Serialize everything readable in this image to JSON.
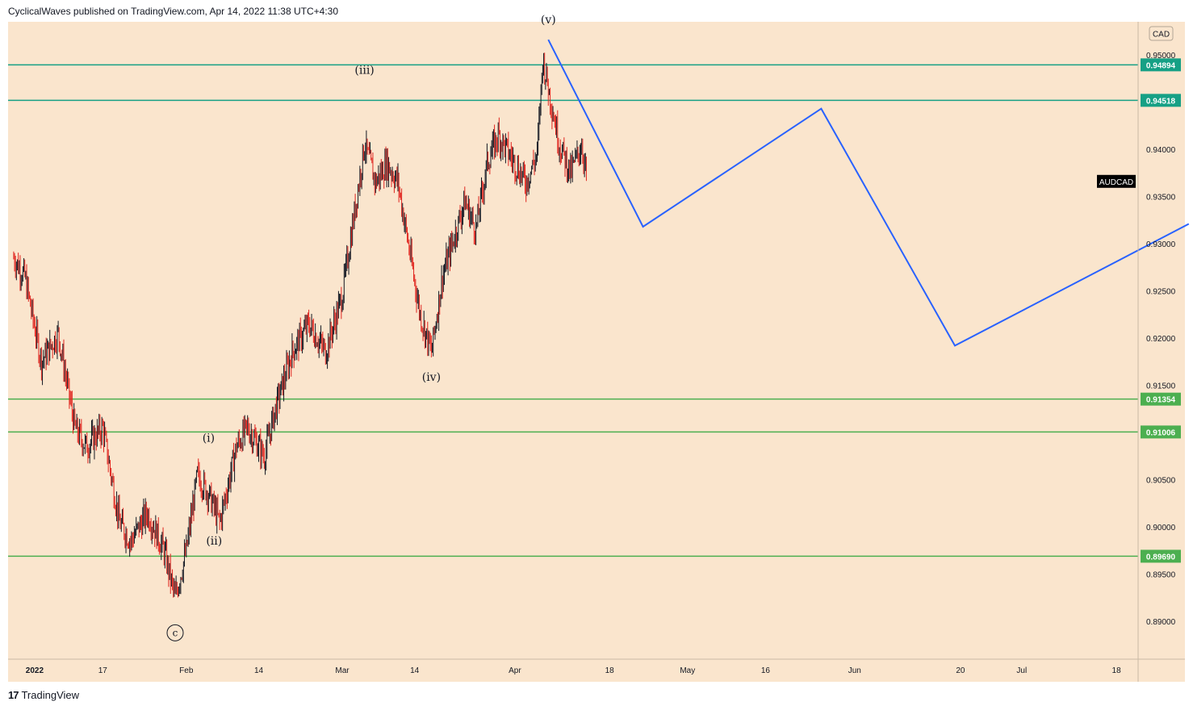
{
  "header": {
    "publisher": "CyclicalWaves published on TradingView.com, Apr 14, 2022 11:38 UTC+4:30"
  },
  "footer": {
    "logo_glyph": "17",
    "brand": "TradingView"
  },
  "colors": {
    "background": "#fae5cd",
    "up_candle": "#131722",
    "down_candle": "#e0241e",
    "teal_level": "#16a085",
    "green_level": "#4caf50",
    "projection": "#2962ff"
  },
  "chart_data": {
    "type": "candlestick",
    "symbol": "AUDCAD",
    "currency": "CAD",
    "ylim": [
      0.886,
      0.9535
    ],
    "y_ticks": [
      "0.89000",
      "0.89500",
      "0.90000",
      "0.90500",
      "0.91500",
      "0.92000",
      "0.92500",
      "0.93000",
      "0.93500",
      "0.94000",
      "0.95000"
    ],
    "x_ticks": [
      {
        "label": "2022",
        "date": "2022-01-01",
        "bold": true
      },
      {
        "label": "17",
        "date": "2022-01-17"
      },
      {
        "label": "Feb",
        "date": "2022-02-01"
      },
      {
        "label": "14",
        "date": "2022-02-14"
      },
      {
        "label": "Mar",
        "date": "2022-03-01"
      },
      {
        "label": "14",
        "date": "2022-03-14"
      },
      {
        "label": "Apr",
        "date": "2022-04-01"
      },
      {
        "label": "18",
        "date": "2022-04-18"
      },
      {
        "label": "May",
        "date": "2022-05-02"
      },
      {
        "label": "16",
        "date": "2022-05-16"
      },
      {
        "label": "Jun",
        "date": "2022-06-01"
      },
      {
        "label": "20",
        "date": "2022-06-20"
      },
      {
        "label": "Jul",
        "date": "2022-07-01"
      },
      {
        "label": "18",
        "date": "2022-07-18"
      }
    ],
    "date_range": [
      "2021-12-31",
      "2022-07-31"
    ],
    "price_path": [
      {
        "date": "2022-01-01",
        "price": 0.9285
      },
      {
        "date": "2022-01-03",
        "price": 0.9265
      },
      {
        "date": "2022-01-06",
        "price": 0.9175
      },
      {
        "date": "2022-01-09",
        "price": 0.9205
      },
      {
        "date": "2022-01-12",
        "price": 0.9105
      },
      {
        "date": "2022-01-14",
        "price": 0.9085
      },
      {
        "date": "2022-01-17",
        "price": 0.9105
      },
      {
        "date": "2022-01-20",
        "price": 0.9005
      },
      {
        "date": "2022-01-22",
        "price": 0.8985
      },
      {
        "date": "2022-01-25",
        "price": 0.9015
      },
      {
        "date": "2022-01-28",
        "price": 0.8975
      },
      {
        "date": "2022-01-30",
        "price": 0.8925
      },
      {
        "date": "2022-02-01",
        "price": 0.8975
      },
      {
        "date": "2022-02-03",
        "price": 0.9055
      },
      {
        "date": "2022-02-05",
        "price": 0.9035
      },
      {
        "date": "2022-02-07",
        "price": 0.9005
      },
      {
        "date": "2022-02-10",
        "price": 0.9085
      },
      {
        "date": "2022-02-12",
        "price": 0.9105
      },
      {
        "date": "2022-02-15",
        "price": 0.9075
      },
      {
        "date": "2022-02-17",
        "price": 0.9125
      },
      {
        "date": "2022-02-20",
        "price": 0.9185
      },
      {
        "date": "2022-02-23",
        "price": 0.9215
      },
      {
        "date": "2022-02-26",
        "price": 0.9185
      },
      {
        "date": "2022-03-01",
        "price": 0.9245
      },
      {
        "date": "2022-03-03",
        "price": 0.9325
      },
      {
        "date": "2022-03-05",
        "price": 0.9405
      },
      {
        "date": "2022-03-07",
        "price": 0.9365
      },
      {
        "date": "2022-03-09",
        "price": 0.9385
      },
      {
        "date": "2022-03-11",
        "price": 0.9365
      },
      {
        "date": "2022-03-13",
        "price": 0.9295
      },
      {
        "date": "2022-03-15",
        "price": 0.9225
      },
      {
        "date": "2022-03-17",
        "price": 0.9185
      },
      {
        "date": "2022-03-19",
        "price": 0.9265
      },
      {
        "date": "2022-03-21",
        "price": 0.9305
      },
      {
        "date": "2022-03-23",
        "price": 0.9345
      },
      {
        "date": "2022-03-25",
        "price": 0.9315
      },
      {
        "date": "2022-03-27",
        "price": 0.9385
      },
      {
        "date": "2022-03-29",
        "price": 0.9415
      },
      {
        "date": "2022-04-01",
        "price": 0.9385
      },
      {
        "date": "2022-04-03",
        "price": 0.9365
      },
      {
        "date": "2022-04-05",
        "price": 0.9395
      },
      {
        "date": "2022-04-06",
        "price": 0.9495
      },
      {
        "date": "2022-04-07",
        "price": 0.9465
      },
      {
        "date": "2022-04-09",
        "price": 0.9405
      },
      {
        "date": "2022-04-11",
        "price": 0.9375
      },
      {
        "date": "2022-04-13",
        "price": 0.9405
      },
      {
        "date": "2022-04-14",
        "price": 0.9365
      }
    ],
    "levels": [
      {
        "label": "0.94894",
        "price": 0.94894,
        "color": "#16a085"
      },
      {
        "label": "0.94518",
        "price": 0.94518,
        "color": "#16a085"
      },
      {
        "label": "0.91354",
        "price": 0.91354,
        "color": "#4caf50"
      },
      {
        "label": "0.91006",
        "price": 0.91006,
        "color": "#4caf50"
      },
      {
        "label": "0.89690",
        "price": 0.8969,
        "color": "#4caf50"
      }
    ],
    "projection_path": [
      {
        "date": "2022-04-07",
        "price": 0.9516
      },
      {
        "date": "2022-04-24",
        "price": 0.9318
      },
      {
        "date": "2022-05-26",
        "price": 0.9443
      },
      {
        "date": "2022-06-19",
        "price": 0.9192
      },
      {
        "date": "2022-07-31",
        "price": 0.9321
      }
    ],
    "wave_labels": [
      {
        "text": "(v)",
        "date": "2022-04-07",
        "price": 0.9523,
        "offset_y": -12
      },
      {
        "text": "(iii)",
        "date": "2022-03-05",
        "price": 0.9468,
        "offset_y": -14
      },
      {
        "text": "(iv)",
        "date": "2022-03-17",
        "price": 0.917,
        "offset_y": 18
      },
      {
        "text": "(i)",
        "date": "2022-02-05",
        "price": 0.908,
        "offset_y": -12
      },
      {
        "text": "(ii)",
        "date": "2022-02-06",
        "price": 0.9,
        "offset_y": 22
      }
    ],
    "circled_label": {
      "text": "c",
      "date": "2022-01-30",
      "price": 0.8905,
      "offset_y": 20
    },
    "current_price": 0.9366
  }
}
